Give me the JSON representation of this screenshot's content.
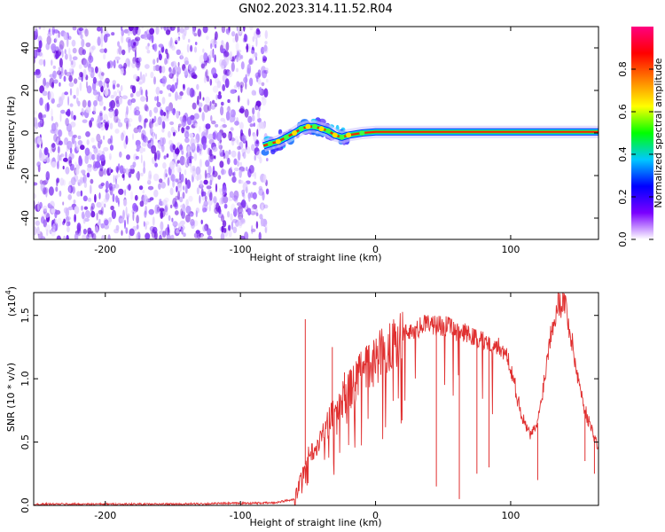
{
  "chart_data": [
    {
      "type": "heatmap",
      "title": "GN02.2023.314.11.52.R04",
      "xlabel": "Height of straight line (km)",
      "ylabel": "Frequency (Hz)",
      "xlim": [
        -253,
        165
      ],
      "ylim": [
        -50,
        50
      ],
      "x_ticks": [
        -200,
        -100,
        0,
        100
      ],
      "y_ticks": [
        -40,
        -20,
        0,
        20,
        40
      ],
      "noise_region_x": [
        -253,
        -80
      ],
      "signal_track": [
        {
          "x": -83,
          "y": -6
        },
        {
          "x": -78,
          "y": -5
        },
        {
          "x": -72,
          "y": -4
        },
        {
          "x": -66,
          "y": -2
        },
        {
          "x": -60,
          "y": 0
        },
        {
          "x": -55,
          "y": 2
        },
        {
          "x": -50,
          "y": 3
        },
        {
          "x": -45,
          "y": 3
        },
        {
          "x": -40,
          "y": 2
        },
        {
          "x": -35,
          "y": 1
        },
        {
          "x": -30,
          "y": -1
        },
        {
          "x": -25,
          "y": -2
        },
        {
          "x": -20,
          "y": -1
        },
        {
          "x": -10,
          "y": 0
        },
        {
          "x": 0,
          "y": 0.5
        },
        {
          "x": 50,
          "y": 0.5
        },
        {
          "x": 100,
          "y": 0.5
        },
        {
          "x": 165,
          "y": 0.5
        }
      ],
      "colorbar": {
        "label": "Normalized spectral amplitude",
        "range": [
          0,
          1
        ],
        "ticks": [
          "0.0",
          "0.2",
          "0.4",
          "0.6",
          "0.8"
        ],
        "colors": [
          "#ffffff",
          "#7a00ff",
          "#0000ff",
          "#00c8ff",
          "#00ff00",
          "#ffff00",
          "#ff8000",
          "#ff0000",
          "#ff0080"
        ]
      }
    },
    {
      "type": "line",
      "xlabel": "Height of straight line (km)",
      "ylabel": "SNR (10 * v/v)",
      "multiplier_label": "(x10",
      "multiplier_exp": "4",
      "multiplier_close": ")",
      "xlim": [
        -253,
        165
      ],
      "ylim": [
        0,
        1.68
      ],
      "x_ticks": [
        -200,
        -100,
        0,
        100
      ],
      "y_ticks": [
        "0.0",
        "0.5",
        "1.0",
        "1.5"
      ],
      "color": "#e03030",
      "x": [
        -253,
        -150,
        -75,
        -60,
        -55,
        -50,
        -45,
        -40,
        -35,
        -30,
        -25,
        -20,
        -10,
        0,
        10,
        20,
        30,
        40,
        50,
        60,
        70,
        80,
        90,
        95,
        100,
        105,
        110,
        115,
        120,
        125,
        130,
        135,
        140,
        145,
        150,
        155,
        160,
        165
      ],
      "y": [
        0.01,
        0.01,
        0.02,
        0.05,
        0.2,
        0.4,
        0.45,
        0.55,
        0.65,
        0.75,
        0.82,
        0.9,
        1.05,
        1.15,
        1.27,
        1.35,
        1.4,
        1.43,
        1.42,
        1.38,
        1.34,
        1.3,
        1.26,
        1.22,
        1.1,
        0.85,
        0.65,
        0.55,
        0.65,
        1.0,
        1.4,
        1.6,
        1.62,
        1.3,
        1.0,
        0.75,
        0.6,
        0.45
      ],
      "spikes": [
        {
          "x": -52,
          "y": 1.47
        },
        {
          "x": -32,
          "y": 1.25
        },
        {
          "x": -23,
          "y": 1.05
        },
        {
          "x": -15,
          "y": 0.9
        },
        {
          "x": 45,
          "y": 0.15
        },
        {
          "x": 62,
          "y": 0.05
        },
        {
          "x": 75,
          "y": 0.25
        },
        {
          "x": 84,
          "y": 0.3
        },
        {
          "x": 120,
          "y": 0.2
        },
        {
          "x": 155,
          "y": 0.35
        },
        {
          "x": 162,
          "y": 0.25
        }
      ]
    }
  ]
}
